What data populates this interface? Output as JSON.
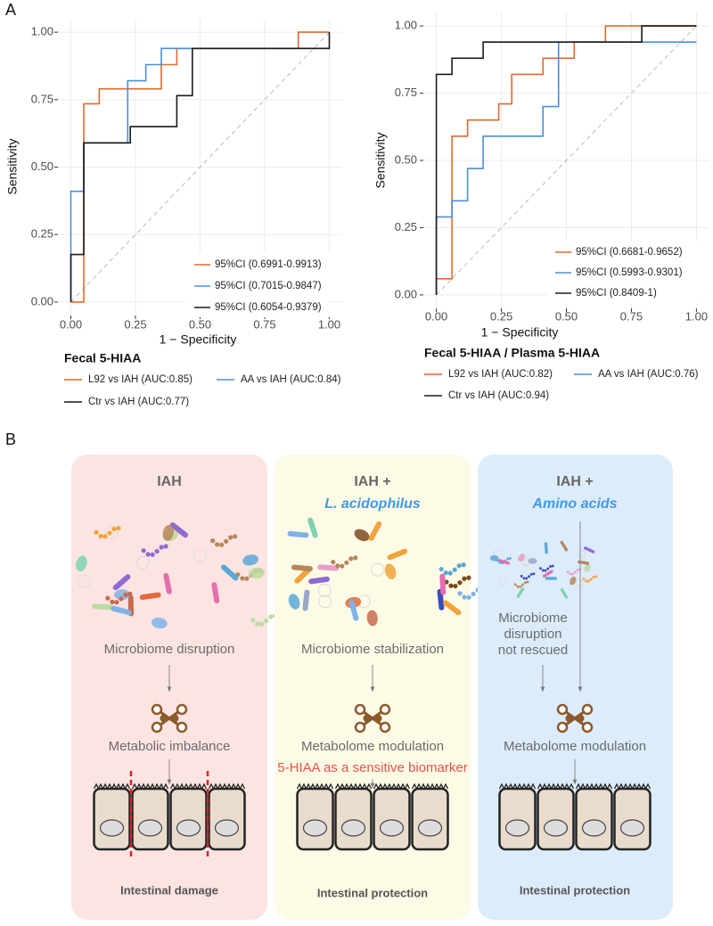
{
  "panel_a_label": "A",
  "chart_data": [
    {
      "type": "line",
      "title": "Fecal 5-HIAA",
      "x_label": "1 − Specificity",
      "y_label": "Sensitivity",
      "xlim": [
        -0.05,
        1.05
      ],
      "ylim": [
        -0.05,
        1.05
      ],
      "xticks": [
        {
          "value": 0,
          "label": "0.00"
        },
        {
          "value": 0.25,
          "label": "0.25"
        },
        {
          "value": 0.5,
          "label": "0.50"
        },
        {
          "value": 0.75,
          "label": "0.75"
        },
        {
          "value": 1,
          "label": "1.00"
        }
      ],
      "yticks": [
        {
          "value": 0,
          "label": "0.00"
        },
        {
          "value": 0.25,
          "label": "0.25"
        },
        {
          "value": 0.5,
          "label": "0.50"
        },
        {
          "value": 0.75,
          "label": "0.75"
        },
        {
          "value": 1,
          "label": "1.00"
        }
      ],
      "grid": true,
      "series": [
        {
          "name": "L92 vs IAH (AUC:0.85)",
          "ci": "95%CI (0.6991-0.9913)",
          "color": "#e2692f",
          "x": [
            0,
            0.05,
            0.05,
            0.11,
            0.11,
            0.35,
            0.35,
            0.41,
            0.41,
            0.88,
            0.88,
            1
          ],
          "values": [
            0,
            0,
            0.735,
            0.735,
            0.79,
            0.79,
            0.88,
            0.88,
            0.94,
            0.94,
            1,
            1
          ]
        },
        {
          "name": "AA vs IAH (AUC:0.84)",
          "ci": "95%CI (0.7015-0.9847)",
          "color": "#4a8fdc",
          "x": [
            0,
            0,
            0.05,
            0.05,
            0.22,
            0.22,
            0.29,
            0.29,
            0.35,
            0.35,
            1
          ],
          "values": [
            0,
            0.41,
            0.41,
            0.59,
            0.59,
            0.82,
            0.82,
            0.88,
            0.88,
            0.94,
            0.94
          ]
        },
        {
          "name": "Ctr vs IAH (AUC:0.77)",
          "ci": "95%CI (0.6054-0.9379)",
          "color": "#1a1a1a",
          "x": [
            0,
            0,
            0.05,
            0.05,
            0.23,
            0.23,
            0.41,
            0.41,
            0.47,
            0.47,
            1,
            1
          ],
          "values": [
            0,
            0.176,
            0.176,
            0.59,
            0.59,
            0.65,
            0.65,
            0.765,
            0.765,
            0.94,
            0.94,
            1
          ]
        }
      ]
    },
    {
      "type": "line",
      "title": "Fecal 5-HIAA / Plasma 5-HIAA",
      "x_label": "1 − Specificity",
      "y_label": "Sensitivity",
      "xlim": [
        -0.05,
        1.05
      ],
      "ylim": [
        -0.05,
        1.05
      ],
      "xticks": [
        {
          "value": 0,
          "label": "0.00"
        },
        {
          "value": 0.25,
          "label": "0.25"
        },
        {
          "value": 0.5,
          "label": "0.50"
        },
        {
          "value": 0.75,
          "label": "0.75"
        },
        {
          "value": 1,
          "label": "1.00"
        }
      ],
      "yticks": [
        {
          "value": 0,
          "label": "0.00"
        },
        {
          "value": 0.25,
          "label": "0.25"
        },
        {
          "value": 0.5,
          "label": "0.50"
        },
        {
          "value": 0.75,
          "label": "0.75"
        },
        {
          "value": 1,
          "label": "1.00"
        }
      ],
      "grid": true,
      "series": [
        {
          "name": "L92 vs IAH (AUC:0.82)",
          "ci": "95%CI (0.6681-0.9652)",
          "color": "#e2692f",
          "x": [
            0,
            0,
            0.06,
            0.06,
            0.12,
            0.12,
            0.24,
            0.24,
            0.29,
            0.29,
            0.41,
            0.41,
            0.53,
            0.53,
            0.65,
            0.65,
            1
          ],
          "values": [
            0,
            0.06,
            0.06,
            0.59,
            0.59,
            0.65,
            0.65,
            0.71,
            0.71,
            0.82,
            0.82,
            0.88,
            0.88,
            0.94,
            0.94,
            1,
            1
          ]
        },
        {
          "name": "AA vs IAH (AUC:0.76)",
          "ci": "95%CI (0.5993-0.9301)",
          "color": "#4a8fdc",
          "x": [
            0,
            0,
            0.06,
            0.06,
            0.12,
            0.12,
            0.18,
            0.18,
            0.41,
            0.41,
            0.47,
            0.47,
            1
          ],
          "values": [
            0,
            0.29,
            0.29,
            0.35,
            0.35,
            0.47,
            0.47,
            0.59,
            0.59,
            0.7,
            0.7,
            0.94,
            0.94
          ]
        },
        {
          "name": "Ctr vs IAH (AUC:0.94)",
          "ci": "95%CI (0.8409-1)",
          "color": "#1a1a1a",
          "x": [
            0,
            0,
            0.06,
            0.06,
            0.18,
            0.18,
            0.79,
            0.79,
            1
          ],
          "values": [
            0,
            0.82,
            0.82,
            0.88,
            0.88,
            0.94,
            0.94,
            1,
            1
          ]
        }
      ]
    }
  ],
  "diagram": {
    "label": "B",
    "panels": [
      {
        "title": "IAH",
        "microbiome": [
          "Microbiome disruption"
        ],
        "metabolism": "Metabolic imbalance",
        "outcome": "Intestinal damage"
      },
      {
        "title": "IAH +",
        "subtitle": "L. acidophilus",
        "microbiome": [
          "Microbiome stabilization"
        ],
        "metabolism": "Metabolome modulation",
        "outcome": "Intestinal protection"
      },
      {
        "title": "IAH +",
        "subtitle": "Amino acids",
        "microbiome": [
          "Microbiome",
          "disruption",
          "not rescued"
        ],
        "metabolism": "Metabolome modulation",
        "outcome": "Intestinal protection"
      }
    ],
    "biomarker": "5-HIAA as a sensitive biomarker"
  }
}
